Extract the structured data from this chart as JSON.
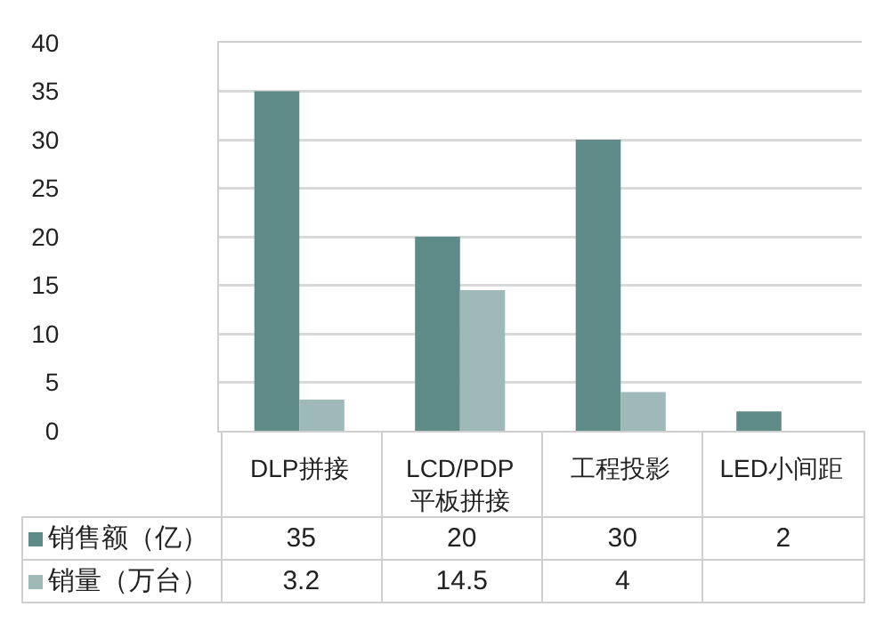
{
  "chart_data": {
    "type": "bar",
    "categories": [
      "DLP拼接",
      "LCD/PDP平板拼接",
      "工程投影",
      "LED小间距"
    ],
    "series": [
      {
        "name": "销售额（亿）",
        "color": "#5e8a88",
        "values": [
          35,
          20,
          30,
          2
        ]
      },
      {
        "name": "销量（万台）",
        "color": "#9fb8b8",
        "values": [
          3.2,
          14.5,
          4,
          null
        ]
      }
    ],
    "ylim": [
      0,
      40
    ],
    "yticks": [
      0,
      5,
      10,
      15,
      20,
      25,
      30,
      35,
      40
    ],
    "grid": "y",
    "legend": "bottom",
    "data_labels": true
  }
}
